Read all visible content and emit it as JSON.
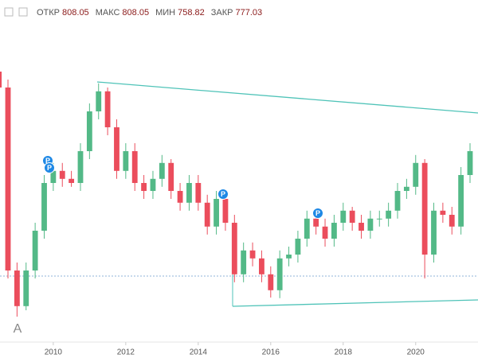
{
  "chart_data": {
    "type": "candlestick",
    "header": [
      {
        "label": "ОТКР",
        "value": 808.05
      },
      {
        "label": "МАКС",
        "value": 808.05
      },
      {
        "label": "МИН",
        "value": 758.82
      },
      {
        "label": "ЗАКР",
        "value": 777.03
      }
    ],
    "x": [
      2008.5,
      2008.75,
      2009,
      2009.25,
      2009.5,
      2009.75,
      2010,
      2010.25,
      2010.5,
      2010.75,
      2011,
      2011.25,
      2011.5,
      2011.75,
      2012,
      2012.25,
      2012.5,
      2012.75,
      2013,
      2013.25,
      2013.5,
      2013.75,
      2014,
      2014.25,
      2014.5,
      2014.75,
      2015,
      2015.25,
      2015.5,
      2015.75,
      2016,
      2016.25,
      2016.5,
      2016.75,
      2017,
      2017.25,
      2017.5,
      2017.75,
      2018,
      2018.25,
      2018.5,
      2018.75,
      2019,
      2019.25,
      2019.5,
      2019.75,
      2020,
      2020.25,
      2020.5,
      2020.75,
      2021,
      2021.25,
      2021.5
    ],
    "open": [
      1050,
      1000,
      425,
      313,
      425,
      550,
      700,
      738,
      713,
      700,
      800,
      925,
      988,
      875,
      738,
      800,
      700,
      675,
      713,
      763,
      675,
      638,
      700,
      638,
      563,
      650,
      575,
      413,
      488,
      463,
      413,
      363,
      463,
      475,
      525,
      588,
      563,
      525,
      575,
      613,
      575,
      550,
      588,
      588,
      613,
      675,
      688,
      763,
      475,
      613,
      600,
      563,
      725
    ],
    "close": [
      1000,
      425,
      313,
      425,
      550,
      700,
      738,
      713,
      700,
      800,
      925,
      988,
      875,
      738,
      800,
      700,
      675,
      713,
      763,
      675,
      638,
      700,
      638,
      563,
      650,
      575,
      413,
      488,
      463,
      413,
      363,
      463,
      475,
      525,
      588,
      563,
      525,
      575,
      613,
      575,
      550,
      588,
      588,
      613,
      675,
      688,
      763,
      475,
      613,
      600,
      563,
      725,
      800
    ],
    "high": [
      1075,
      1025,
      450,
      450,
      575,
      725,
      763,
      763,
      738,
      825,
      950,
      1013,
      1000,
      900,
      825,
      825,
      725,
      738,
      788,
      775,
      700,
      725,
      725,
      663,
      675,
      663,
      600,
      513,
      513,
      488,
      438,
      488,
      500,
      550,
      613,
      613,
      588,
      600,
      638,
      625,
      600,
      613,
      613,
      638,
      700,
      713,
      788,
      775,
      638,
      638,
      625,
      750,
      825
    ],
    "low": [
      975,
      400,
      280,
      300,
      400,
      525,
      675,
      688,
      688,
      675,
      775,
      900,
      850,
      713,
      713,
      675,
      650,
      650,
      688,
      650,
      613,
      613,
      613,
      538,
      538,
      550,
      388,
      388,
      438,
      388,
      340,
      338,
      438,
      450,
      500,
      538,
      500,
      500,
      550,
      550,
      525,
      525,
      563,
      563,
      588,
      650,
      663,
      400,
      450,
      575,
      538,
      538,
      700
    ],
    "up_color": "#53b987",
    "down_color": "#eb4d5c",
    "xlim": [
      2008.53,
      2021.72
    ],
    "xticks": [
      2010,
      2012,
      2014,
      2016,
      2018,
      2020
    ],
    "ylim": [
      200,
      1275
    ],
    "annotations": [
      "P",
      "P",
      "P",
      "P"
    ],
    "corner_label": "A"
  }
}
